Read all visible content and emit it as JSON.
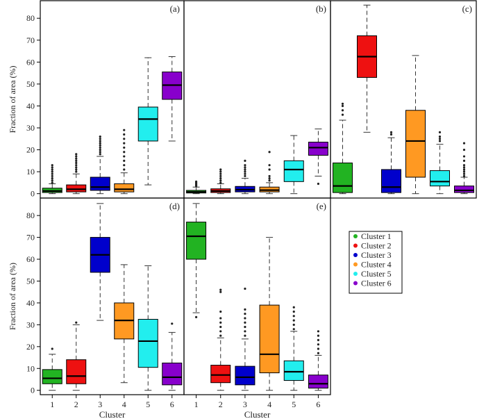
{
  "chart_data": {
    "type": "boxplot",
    "ylabel": "Fraction of area (%)",
    "xlabel": "Cluster",
    "categories": [
      "1",
      "2",
      "3",
      "4",
      "5",
      "6"
    ],
    "yticks": [
      0,
      10,
      20,
      30,
      40,
      50,
      60,
      70,
      80
    ],
    "ylim": [
      -2,
      88
    ],
    "legend": {
      "placement": "right of panel (e)",
      "entries": [
        "Cluster 1",
        "Cluster 2",
        "Cluster 3",
        "Cluster 4",
        "Cluster 5",
        "Cluster 6"
      ]
    },
    "colors": [
      "#22b322",
      "#ee1111",
      "#0000cc",
      "#ff9922",
      "#22eeee",
      "#8800cc"
    ],
    "panels": [
      {
        "label": "(a)",
        "boxes": [
          {
            "q1": 0.5,
            "median": 1.2,
            "q3": 2.5,
            "whisker_low": 0,
            "whisker_high": 4.5,
            "outliers": [
              5,
              6,
              7,
              8,
              9,
              10,
              11,
              12,
              13
            ]
          },
          {
            "q1": 0.8,
            "median": 2,
            "q3": 4,
            "whisker_low": 0,
            "whisker_high": 9,
            "outliers": [
              10,
              11,
              12,
              13,
              14,
              15,
              16,
              17,
              18
            ]
          },
          {
            "q1": 1.5,
            "median": 3,
            "q3": 7.5,
            "whisker_low": 0,
            "whisker_high": 17,
            "outliers": [
              18,
              19,
              20,
              21,
              22,
              23,
              24,
              25,
              26
            ]
          },
          {
            "q1": 0.8,
            "median": 2,
            "q3": 4.5,
            "whisker_low": 0,
            "whisker_high": 9.5,
            "outliers": [
              11,
              13,
              15,
              17,
              19,
              21,
              23,
              25,
              27,
              29
            ]
          },
          {
            "q1": 24,
            "median": 34,
            "q3": 39.5,
            "whisker_low": 4,
            "whisker_high": 62,
            "outliers": []
          },
          {
            "q1": 43,
            "median": 49.5,
            "q3": 55.5,
            "whisker_low": 24,
            "whisker_high": 62.5,
            "outliers": []
          }
        ]
      },
      {
        "label": "(b)",
        "boxes": [
          {
            "q1": 0.3,
            "median": 0.8,
            "q3": 1.5,
            "whisker_low": 0,
            "whisker_high": 3,
            "outliers": [
              3.5,
              4,
              4.5,
              5,
              5.5
            ]
          },
          {
            "q1": 0.5,
            "median": 1.2,
            "q3": 2.2,
            "whisker_low": 0,
            "whisker_high": 4.5,
            "outliers": [
              5,
              6,
              7,
              8,
              9,
              10,
              11
            ]
          },
          {
            "q1": 0.8,
            "median": 1.8,
            "q3": 3.3,
            "whisker_low": 0,
            "whisker_high": 7,
            "outliers": [
              8,
              9,
              10,
              11,
              12,
              13,
              15
            ]
          },
          {
            "q1": 0.8,
            "median": 1.6,
            "q3": 3,
            "whisker_low": 0,
            "whisker_high": 5,
            "outliers": [
              6,
              7,
              8,
              11,
              13,
              19
            ]
          },
          {
            "q1": 5.5,
            "median": 11,
            "q3": 15,
            "whisker_low": 0,
            "whisker_high": 26.5,
            "outliers": []
          },
          {
            "q1": 17.5,
            "median": 21,
            "q3": 23.5,
            "whisker_low": 8,
            "whisker_high": 29.5,
            "outliers": [
              4.5
            ]
          }
        ]
      },
      {
        "label": "(c)",
        "boxes": [
          {
            "q1": 0.5,
            "median": 3.5,
            "q3": 14,
            "whisker_low": 0,
            "whisker_high": 33.5,
            "outliers": [
              36,
              38,
              40,
              41
            ]
          },
          {
            "q1": 53,
            "median": 62.5,
            "q3": 72,
            "whisker_low": 28,
            "whisker_high": 86,
            "outliers": []
          },
          {
            "q1": 0.5,
            "median": 3,
            "q3": 11,
            "whisker_low": 0,
            "whisker_high": 25.5,
            "outliers": [
              27,
              28
            ]
          },
          {
            "q1": 7.5,
            "median": 24,
            "q3": 38,
            "whisker_low": 0,
            "whisker_high": 63,
            "outliers": []
          },
          {
            "q1": 3.5,
            "median": 5.5,
            "q3": 10.5,
            "whisker_low": 0,
            "whisker_high": 22.5,
            "outliers": [
              24,
              25,
              26,
              28
            ]
          },
          {
            "q1": 0.5,
            "median": 1.5,
            "q3": 3.5,
            "whisker_low": 0,
            "whisker_high": 7.5,
            "outliers": [
              8,
              9,
              10,
              11,
              12,
              13,
              15,
              17,
              20,
              23
            ]
          }
        ]
      },
      {
        "label": "(d)",
        "boxes": [
          {
            "q1": 3,
            "median": 5.5,
            "q3": 9.5,
            "whisker_low": 0,
            "whisker_high": 16.5,
            "outliers": [
              19
            ]
          },
          {
            "q1": 3,
            "median": 6.5,
            "q3": 14,
            "whisker_low": 0,
            "whisker_high": 30,
            "outliers": [
              31
            ]
          },
          {
            "q1": 54,
            "median": 62,
            "q3": 70,
            "whisker_low": 32,
            "whisker_high": 85.5,
            "outliers": []
          },
          {
            "q1": 23.5,
            "median": 32,
            "q3": 40,
            "whisker_low": 3.5,
            "whisker_high": 57.5,
            "outliers": []
          },
          {
            "q1": 10.5,
            "median": 22.5,
            "q3": 32.5,
            "whisker_low": 0,
            "whisker_high": 57,
            "outliers": []
          },
          {
            "q1": 2.5,
            "median": 6,
            "q3": 12.5,
            "whisker_low": 0,
            "whisker_high": 26.5,
            "outliers": [
              30.5
            ]
          }
        ]
      },
      {
        "label": "(e)",
        "boxes": [
          {
            "q1": 60,
            "median": 70.5,
            "q3": 77,
            "whisker_low": 35.5,
            "whisker_high": 85.5,
            "outliers": [
              33.5
            ]
          },
          {
            "q1": 3.5,
            "median": 7,
            "q3": 11.5,
            "whisker_low": 0,
            "whisker_high": 24,
            "outliers": [
              25,
              27,
              29,
              31,
              33,
              36,
              45,
              46
            ]
          },
          {
            "q1": 2.5,
            "median": 6,
            "q3": 11,
            "whisker_low": 0,
            "whisker_high": 23.5,
            "outliers": [
              25,
              27,
              29,
              31,
              33,
              35,
              37,
              46.5
            ]
          },
          {
            "q1": 8,
            "median": 16.5,
            "q3": 39,
            "whisker_low": 0,
            "whisker_high": 70,
            "outliers": []
          },
          {
            "q1": 4.5,
            "median": 8.5,
            "q3": 13.5,
            "whisker_low": 0,
            "whisker_high": 27,
            "outliers": [
              28,
              30,
              32,
              34,
              36,
              38
            ]
          },
          {
            "q1": 1,
            "median": 3,
            "q3": 7,
            "whisker_low": 0,
            "whisker_high": 16,
            "outliers": [
              17,
              19,
              21,
              23,
              25,
              27
            ]
          }
        ]
      }
    ]
  }
}
